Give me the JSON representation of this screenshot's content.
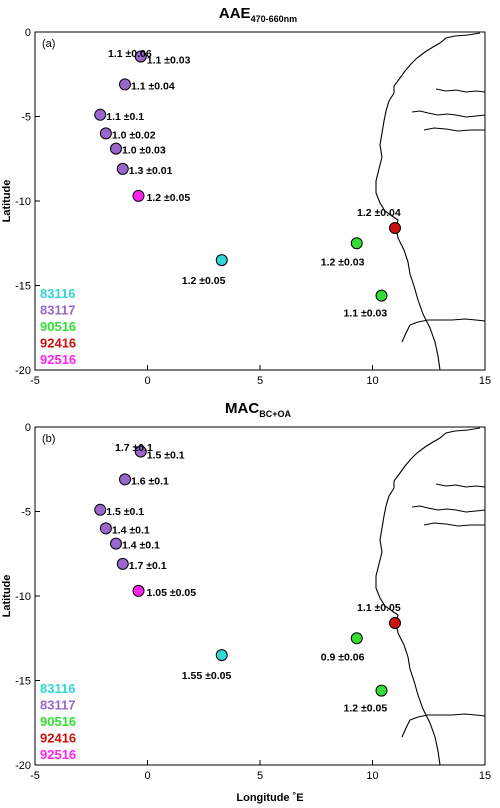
{
  "chart_data": [
    {
      "type": "scatter",
      "panel_label": "(a)",
      "title": "AAE",
      "title_subscript": "470-660nm",
      "xlabel": "",
      "ylabel": "Latitude",
      "xlim": [
        -5,
        15
      ],
      "ylim": [
        -20,
        0
      ],
      "xticks": [
        "-5",
        "0",
        "5",
        "10",
        "15"
      ],
      "yticks": [
        "0",
        "-5",
        "-10",
        "-15",
        "-20"
      ],
      "grid": false,
      "legend_position": "bottom-left",
      "series": [
        {
          "name": "83116",
          "color": "#33d6d6",
          "points": [
            {
              "lon": 3.3,
              "lat": -13.5,
              "label": "1.2 ±0.05"
            }
          ]
        },
        {
          "name": "83117",
          "color": "#9966cc",
          "points": [
            {
              "lon": -0.3,
              "lat": -1.45,
              "label": "1.1 ±0.03"
            },
            {
              "lon": -1.0,
              "lat": -3.1,
              "label": "1.1 ±0.04"
            },
            {
              "lon": -2.1,
              "lat": -4.9,
              "label": "1.1 ±0.1"
            },
            {
              "lon": -1.85,
              "lat": -6.0,
              "label": "1.0 ±0.02"
            },
            {
              "lon": -1.4,
              "lat": -6.9,
              "label": "1.0 ±0.03"
            },
            {
              "lon": -1.1,
              "lat": -8.1,
              "label": "1.3 ±0.01"
            }
          ]
        },
        {
          "name": "90516",
          "color": "#33dd33",
          "points": [
            {
              "lon": 9.3,
              "lat": -12.5,
              "label": "1.2 ±0.03"
            },
            {
              "lon": 10.4,
              "lat": -15.6,
              "label": "1.1 ±0.03"
            }
          ]
        },
        {
          "name": "92416",
          "color": "#cc1111",
          "points": [
            {
              "lon": 11.0,
              "lat": -11.6,
              "label": "1.2 ±0.04"
            }
          ]
        },
        {
          "name": "92516",
          "color": "#ff22ee",
          "points": [
            {
              "lon": -0.4,
              "lat": -9.7,
              "label": "1.2 ±0.05"
            }
          ]
        }
      ],
      "extra_labels": [
        "1.1 ±0.06"
      ]
    },
    {
      "type": "scatter",
      "panel_label": "(b)",
      "title": "MAC",
      "title_subscript": "BC+OA",
      "xlabel": "Longitude ˚E",
      "ylabel": "Latitude",
      "xlim": [
        -5,
        15
      ],
      "ylim": [
        -20,
        0
      ],
      "xticks": [
        "-5",
        "0",
        "5",
        "10",
        "15"
      ],
      "yticks": [
        "0",
        "-5",
        "-10",
        "-15",
        "-20"
      ],
      "grid": false,
      "legend_position": "bottom-left",
      "series": [
        {
          "name": "83116",
          "color": "#33d6d6",
          "points": [
            {
              "lon": 3.3,
              "lat": -13.5,
              "label": "1.55 ±0.05"
            }
          ]
        },
        {
          "name": "83117",
          "color": "#9966cc",
          "points": [
            {
              "lon": -0.3,
              "lat": -1.45,
              "label": "1.5 ±0.1"
            },
            {
              "lon": -1.0,
              "lat": -3.1,
              "label": "1.6 ±0.1"
            },
            {
              "lon": -2.1,
              "lat": -4.9,
              "label": "1.5 ±0.1"
            },
            {
              "lon": -1.85,
              "lat": -6.0,
              "label": "1.4 ±0.1"
            },
            {
              "lon": -1.4,
              "lat": -6.9,
              "label": "1.4 ±0.1"
            },
            {
              "lon": -1.1,
              "lat": -8.1,
              "label": "1.7 ±0.1"
            }
          ]
        },
        {
          "name": "90516",
          "color": "#33dd33",
          "points": [
            {
              "lon": 9.3,
              "lat": -12.5,
              "label": "0.9 ±0.06"
            },
            {
              "lon": 10.4,
              "lat": -15.6,
              "label": "1.2 ±0.05"
            }
          ]
        },
        {
          "name": "92416",
          "color": "#cc1111",
          "points": [
            {
              "lon": 11.0,
              "lat": -11.6,
              "label": "1.1 ±0.05"
            }
          ]
        },
        {
          "name": "92516",
          "color": "#ff22ee",
          "points": [
            {
              "lon": -0.4,
              "lat": -9.7,
              "label": "1.05 ±0.05"
            }
          ]
        }
      ],
      "extra_labels": [
        "1.7 ±0.1"
      ]
    }
  ]
}
